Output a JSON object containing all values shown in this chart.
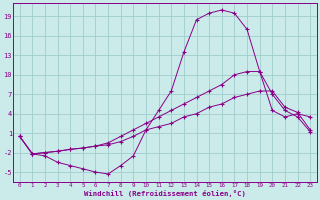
{
  "xlabel": "Windchill (Refroidissement éolien,°C)",
  "background_color": "#cbeaea",
  "grid_color": "#a0cccc",
  "line_color": "#880088",
  "xlim": [
    -0.5,
    23.5
  ],
  "ylim": [
    -6.5,
    21
  ],
  "yticks": [
    -5,
    -2,
    1,
    4,
    7,
    10,
    13,
    16,
    19
  ],
  "xticks": [
    0,
    1,
    2,
    3,
    4,
    5,
    6,
    7,
    8,
    9,
    10,
    11,
    12,
    13,
    14,
    15,
    16,
    17,
    18,
    19,
    20,
    21,
    22,
    23
  ],
  "line1_x": [
    0,
    1,
    2,
    3,
    4,
    5,
    6,
    7,
    8,
    9,
    10,
    11,
    12,
    13,
    14,
    15,
    16,
    17,
    18,
    19,
    20,
    21,
    22,
    23
  ],
  "line1_y": [
    0.5,
    -2.2,
    -2.5,
    -3.5,
    -4.0,
    -4.5,
    -5.0,
    -5.3,
    -4.0,
    -2.5,
    1.5,
    4.5,
    7.5,
    13.5,
    18.5,
    19.5,
    20.0,
    19.5,
    17.0,
    10.5,
    4.5,
    3.5,
    4.0,
    3.5
  ],
  "line2_x": [
    0,
    1,
    2,
    3,
    4,
    5,
    6,
    7,
    8,
    9,
    10,
    11,
    12,
    13,
    14,
    15,
    16,
    17,
    18,
    19,
    20,
    21,
    22,
    23
  ],
  "line2_y": [
    0.5,
    -2.2,
    -2.0,
    -1.8,
    -1.5,
    -1.3,
    -1.0,
    -0.5,
    0.5,
    1.5,
    2.5,
    3.5,
    4.5,
    5.5,
    6.5,
    7.5,
    8.5,
    10.0,
    10.5,
    10.5,
    7.0,
    4.5,
    3.5,
    1.2
  ],
  "line3_x": [
    0,
    1,
    2,
    3,
    4,
    5,
    6,
    7,
    8,
    9,
    10,
    11,
    12,
    13,
    14,
    15,
    16,
    17,
    18,
    19,
    20,
    21,
    22,
    23
  ],
  "line3_y": [
    0.5,
    -2.2,
    -2.0,
    -1.8,
    -1.5,
    -1.3,
    -1.0,
    -0.8,
    -0.3,
    0.5,
    1.5,
    2.0,
    2.5,
    3.5,
    4.0,
    5.0,
    5.5,
    6.5,
    7.0,
    7.5,
    7.5,
    5.0,
    4.2,
    1.5
  ]
}
